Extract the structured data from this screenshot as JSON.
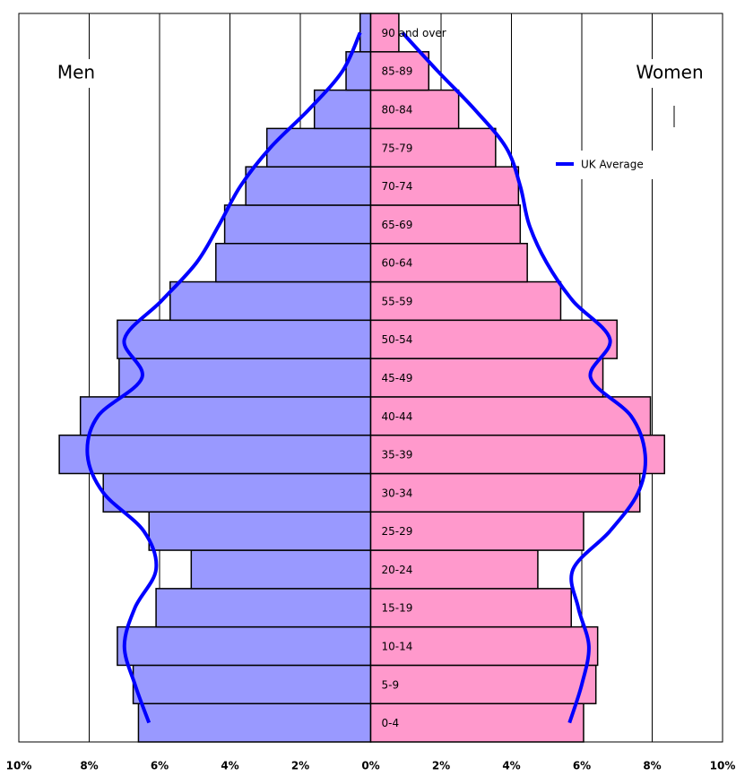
{
  "chart_data": {
    "type": "pyramid",
    "categories": [
      "0-4",
      "5-9",
      "10-14",
      "15-19",
      "20-24",
      "25-29",
      "30-34",
      "35-39",
      "40-44",
      "45-49",
      "50-54",
      "55-59",
      "60-64",
      "65-69",
      "70-74",
      "75-79",
      "80-84",
      "85-89",
      "90 and over"
    ],
    "series": [
      {
        "name": "Men",
        "color": "#9999ff",
        "values": [
          -6.6,
          -6.75,
          -7.2,
          -6.1,
          -5.1,
          -6.3,
          -7.6,
          -8.85,
          -8.25,
          -7.15,
          -7.2,
          -5.7,
          -4.4,
          -4.15,
          -3.55,
          -2.95,
          -1.6,
          -0.7,
          -0.3
        ]
      },
      {
        "name": "Women",
        "color": "#ff99cc",
        "values": [
          6.05,
          6.4,
          6.45,
          5.7,
          4.75,
          6.05,
          7.65,
          8.35,
          7.95,
          6.6,
          7.0,
          5.4,
          4.45,
          4.25,
          4.2,
          3.55,
          2.5,
          1.65,
          0.8
        ]
      }
    ],
    "average": {
      "name": "UK Average",
      "color": "#0000ff",
      "men": [
        -6.3,
        -6.7,
        -7.0,
        -6.7,
        -6.1,
        -6.45,
        -7.6,
        -8.05,
        -7.75,
        -6.5,
        -7.0,
        -5.95,
        -4.95,
        -4.3,
        -3.7,
        -2.85,
        -1.75,
        -0.8,
        -0.3
      ],
      "women": [
        5.65,
        6.0,
        6.2,
        5.9,
        5.75,
        6.8,
        7.6,
        7.8,
        7.4,
        6.25,
        6.8,
        5.75,
        5.0,
        4.5,
        4.25,
        3.85,
        2.95,
        1.9,
        0.9
      ]
    },
    "xlim": [
      -10,
      10
    ],
    "xticks": [
      {
        "value": -10,
        "label": "10%"
      },
      {
        "value": -8,
        "label": "8%"
      },
      {
        "value": -6,
        "label": "6%"
      },
      {
        "value": -4,
        "label": "4%"
      },
      {
        "value": -2,
        "label": "2%"
      },
      {
        "value": 0,
        "label": "0%"
      },
      {
        "value": 2,
        "label": "2%"
      },
      {
        "value": 4,
        "label": "4%"
      },
      {
        "value": 6,
        "label": "6%"
      },
      {
        "value": 8,
        "label": "8%"
      },
      {
        "value": 10,
        "label": "10%"
      }
    ],
    "grid": true
  }
}
